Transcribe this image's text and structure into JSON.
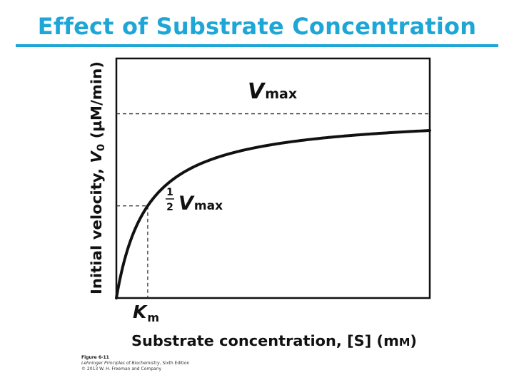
{
  "title": "Effect of Substrate Concentration",
  "colors": {
    "title": "#1ea6d6",
    "rule": "#1ea6d6",
    "curve": "#111111",
    "frame": "#111111",
    "guides": "#333333"
  },
  "chart_data": {
    "type": "line",
    "title": "",
    "xlabel": "Substrate concentration, [S] (mM)",
    "ylabel": "Initial velocity, V0 (µM/min)",
    "xlabel_text": "Substrate concentration, [S] (m",
    "xlabel_unit": "M",
    "xlabel_close": ")",
    "ylabel_text": "Initial velocity, ",
    "ylabel_var": "V",
    "ylabel_sub": "0",
    "ylabel_unit": " (µM/min)",
    "xlim": [
      0,
      10
    ],
    "ylim": [
      0,
      1.3
    ],
    "grid": false,
    "model": "michaelis-menten",
    "Vmax": 1.0,
    "Km": 1.0,
    "series": [
      {
        "x": [
          0,
          0.1,
          0.25,
          0.5,
          0.75,
          1,
          1.5,
          2,
          3,
          4,
          5,
          6,
          7,
          8,
          9,
          10
        ],
        "y": [
          0,
          0.091,
          0.2,
          0.333,
          0.429,
          0.5,
          0.6,
          0.667,
          0.75,
          0.8,
          0.833,
          0.857,
          0.875,
          0.889,
          0.9,
          0.909
        ]
      }
    ],
    "annotations": {
      "vmax_var": "V",
      "vmax_sub": "max",
      "half_num": "1",
      "half_den": "2",
      "half_var": "V",
      "half_sub": "max",
      "km_var": "K",
      "km_sub": "m"
    }
  },
  "credit": {
    "figure": "Figure 6-11",
    "book_italic": "Lehninger Principles of Biochemistry",
    "edition": ", Sixth Edition",
    "copyright": "© 2013 W. H. Freeman and Company"
  }
}
